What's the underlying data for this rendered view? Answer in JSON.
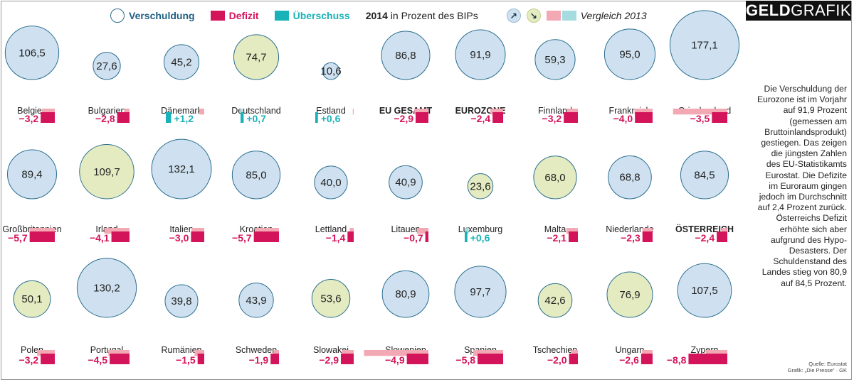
{
  "brand": {
    "part1": "GELD",
    "part2": "GRAFIK"
  },
  "legend": {
    "debt": "Verschuldung",
    "deficit": "Defizit",
    "surplus": "Überschuss",
    "year": "2014",
    "unit": "in Prozent des BIPs",
    "arrow_up": "↗",
    "arrow_down": "↘",
    "comparison": "Vergleich 2013"
  },
  "colors": {
    "circle_blue": "#cfe1f0",
    "circle_green": "#e4ebc1",
    "circle_stroke": "#2a6f8f",
    "deficit": "#d4145a",
    "surplus": "#19b2b8",
    "prev_deficit": "#f3a9b4",
    "prev_surplus": "#a6dbe0"
  },
  "side_text": "Die Verschuldung der Eurozone ist im Vorjahr auf 91,9 Prozent (gemessen am Bruttoinlands­produkt) gestiegen. Das zeigen die jüngsten Zahlen des EU-Statistikamts Eurostat. Die Defizite im Euroraum gingen jedoch im Durch­schnitt auf 2,4 Prozent zurück. Österreichs Defizit erhöhte sich aber aufgrund des Hypo-Desasters. Der Schuldenstand des Landes stieg von 80,9 auf 84,5 Prozent.",
  "source": {
    "line1": "Quelle: Eurostat",
    "line2": "Grafik: „Die Presse“ · GK"
  },
  "chart_data": {
    "type": "bubble",
    "title": "",
    "series": [
      {
        "name": "Verschuldung"
      },
      {
        "name": "Defizit"
      },
      {
        "name": "Überschuss"
      }
    ],
    "countries": [
      {
        "name": "Belgien",
        "debt": 106.5,
        "debt_label": "106,5",
        "balance": -3.2,
        "balance_label": "−3,2",
        "debt_trend": "up",
        "balance_2013": -2.9
      },
      {
        "name": "Bulgarien",
        "debt": 27.6,
        "debt_label": "27,6",
        "balance": -2.8,
        "balance_label": "−2,8",
        "debt_trend": "up",
        "balance_2013": -1.2
      },
      {
        "name": "Dänemark",
        "debt": 45.2,
        "debt_label": "45,2",
        "balance": 1.2,
        "balance_label": "+1,2",
        "debt_trend": "up",
        "balance_2013": -1.1
      },
      {
        "name": "Deutschland",
        "debt": 74.7,
        "debt_label": "74,7",
        "balance": 0.7,
        "balance_label": "+0,7",
        "debt_trend": "down",
        "balance_2013": 0.1
      },
      {
        "name": "Estland",
        "debt": 10.6,
        "debt_label": "10,6",
        "balance": 0.6,
        "balance_label": "+0,6",
        "debt_trend": "up",
        "balance_2013": -0.2
      },
      {
        "name": "EU GESAMT",
        "bold": true,
        "debt": 86.8,
        "debt_label": "86,8",
        "balance": -2.9,
        "balance_label": "−2,9",
        "debt_trend": "up",
        "balance_2013": -3.2
      },
      {
        "name": "EUROZONE",
        "bold": true,
        "debt": 91.9,
        "debt_label": "91,9",
        "balance": -2.4,
        "balance_label": "−2,4",
        "debt_trend": "up",
        "balance_2013": -2.9
      },
      {
        "name": "Finnland",
        "debt": 59.3,
        "debt_label": "59,3",
        "balance": -3.2,
        "balance_label": "−3,2",
        "debt_trend": "up",
        "balance_2013": -2.5
      },
      {
        "name": "Frankreich",
        "debt": 95.0,
        "debt_label": "95,0",
        "balance": -4.0,
        "balance_label": "−4,0",
        "debt_trend": "up",
        "balance_2013": -4.1
      },
      {
        "name": "Griechenland",
        "debt": 177.1,
        "debt_label": "177,1",
        "balance": -3.5,
        "balance_label": "−3,5",
        "debt_trend": "up",
        "balance_2013": -12.3
      },
      {
        "name": "Großbritannien",
        "debt": 89.4,
        "debt_label": "89,4",
        "balance": -5.7,
        "balance_label": "−5,7",
        "debt_trend": "up",
        "balance_2013": -5.7
      },
      {
        "name": "Irland",
        "debt": 109.7,
        "debt_label": "109,7",
        "balance": -4.1,
        "balance_label": "−4,1",
        "debt_trend": "down",
        "balance_2013": -5.7
      },
      {
        "name": "Italien",
        "debt": 132.1,
        "debt_label": "132,1",
        "balance": -3.0,
        "balance_label": "−3,0",
        "debt_trend": "up",
        "balance_2013": -2.9
      },
      {
        "name": "Kroatien",
        "debt": 85.0,
        "debt_label": "85,0",
        "balance": -5.7,
        "balance_label": "−5,7",
        "debt_trend": "up",
        "balance_2013": -5.4
      },
      {
        "name": "Lettland",
        "debt": 40.0,
        "debt_label": "40,0",
        "balance": -1.4,
        "balance_label": "−1,4",
        "debt_trend": "up",
        "balance_2013": -0.9
      },
      {
        "name": "Litauen",
        "debt": 40.9,
        "debt_label": "40,9",
        "balance": -0.7,
        "balance_label": "−0,7",
        "debt_trend": "up",
        "balance_2013": -2.6
      },
      {
        "name": "Luxemburg",
        "debt": 23.6,
        "debt_label": "23,6",
        "balance": 0.6,
        "balance_label": "+0,6",
        "debt_trend": "down",
        "balance_2013": 0.9
      },
      {
        "name": "Malta",
        "debt": 68.0,
        "debt_label": "68,0",
        "balance": -2.1,
        "balance_label": "−2,1",
        "debt_trend": "down",
        "balance_2013": -2.6
      },
      {
        "name": "Niederlande",
        "debt": 68.8,
        "debt_label": "68,8",
        "balance": -2.3,
        "balance_label": "−2,3",
        "debt_trend": "up",
        "balance_2013": -2.3
      },
      {
        "name": "ÖSTERREICH",
        "bold": true,
        "debt": 84.5,
        "debt_label": "84,5",
        "balance": -2.4,
        "balance_label": "−2,4",
        "debt_trend": "up",
        "balance_2013": -1.3
      },
      {
        "name": "Polen",
        "debt": 50.1,
        "debt_label": "50,1",
        "balance": -3.2,
        "balance_label": "−3,2",
        "debt_trend": "down",
        "balance_2013": -4.0
      },
      {
        "name": "Portugal",
        "debt": 130.2,
        "debt_label": "130,2",
        "balance": -4.5,
        "balance_label": "−4,5",
        "debt_trend": "up",
        "balance_2013": -4.8
      },
      {
        "name": "Rumänien",
        "debt": 39.8,
        "debt_label": "39,8",
        "balance": -1.5,
        "balance_label": "−1,5",
        "debt_trend": "up",
        "balance_2013": -2.2
      },
      {
        "name": "Schweden",
        "debt": 43.9,
        "debt_label": "43,9",
        "balance": -1.9,
        "balance_label": "−1,9",
        "debt_trend": "up",
        "balance_2013": -1.3
      },
      {
        "name": "Slowakei",
        "debt": 53.6,
        "debt_label": "53,6",
        "balance": -2.9,
        "balance_label": "−2,9",
        "debt_trend": "down",
        "balance_2013": -2.7
      },
      {
        "name": "Slowenien",
        "debt": 80.9,
        "debt_label": "80,9",
        "balance": -4.9,
        "balance_label": "−4,9",
        "debt_trend": "up",
        "balance_2013": -14.6
      },
      {
        "name": "Spanien",
        "debt": 97.7,
        "debt_label": "97,7",
        "balance": -5.8,
        "balance_label": "−5,8",
        "debt_trend": "up",
        "balance_2013": -6.8
      },
      {
        "name": "Tschechien",
        "debt": 42.6,
        "debt_label": "42,6",
        "balance": -2.0,
        "balance_label": "−2,0",
        "debt_trend": "down",
        "balance_2013": -1.3
      },
      {
        "name": "Ungarn",
        "debt": 76.9,
        "debt_label": "76,9",
        "balance": -2.6,
        "balance_label": "−2,6",
        "debt_trend": "down",
        "balance_2013": -2.4
      },
      {
        "name": "Zypern",
        "debt": 107.5,
        "debt_label": "107,5",
        "balance": -8.8,
        "balance_label": "−8,8",
        "debt_trend": "up",
        "balance_2013": -4.9
      }
    ]
  }
}
